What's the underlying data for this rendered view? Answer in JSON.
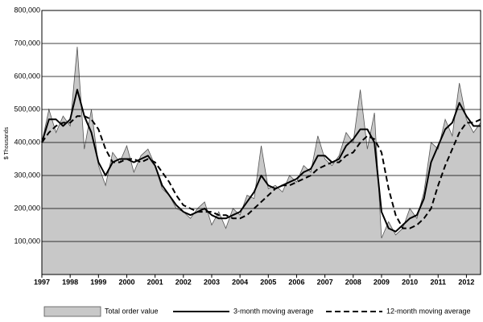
{
  "chart_data": {
    "type": "line",
    "y_label": "$ Thousands",
    "x": [
      1997,
      1997.25,
      1997.5,
      1997.75,
      1998,
      1998.25,
      1998.5,
      1998.75,
      1999,
      1999.25,
      1999.5,
      1999.75,
      2000,
      2000.25,
      2000.5,
      2000.75,
      2001,
      2001.25,
      2001.5,
      2001.75,
      2002,
      2002.25,
      2002.5,
      2002.75,
      2003,
      2003.25,
      2003.5,
      2003.75,
      2004,
      2004.25,
      2004.5,
      2004.75,
      2005,
      2005.25,
      2005.5,
      2005.75,
      2006,
      2006.25,
      2006.5,
      2006.75,
      2007,
      2007.25,
      2007.5,
      2007.75,
      2008,
      2008.25,
      2008.5,
      2008.75,
      2009,
      2009.25,
      2009.5,
      2009.75,
      2010,
      2010.25,
      2010.5,
      2010.75,
      2011,
      2011.25,
      2011.5,
      2011.75,
      2012,
      2012.25,
      2012.5
    ],
    "series": [
      {
        "name": "Total order value",
        "style": "area",
        "color": "#c8c8c8",
        "values": [
          400000,
          500000,
          430000,
          480000,
          450000,
          690000,
          380000,
          500000,
          330000,
          270000,
          370000,
          340000,
          390000,
          310000,
          360000,
          380000,
          330000,
          260000,
          240000,
          200000,
          190000,
          170000,
          200000,
          220000,
          150000,
          190000,
          140000,
          200000,
          180000,
          240000,
          230000,
          390000,
          260000,
          270000,
          250000,
          300000,
          280000,
          330000,
          310000,
          420000,
          350000,
          330000,
          360000,
          430000,
          400000,
          560000,
          380000,
          490000,
          110000,
          160000,
          120000,
          140000,
          200000,
          170000,
          250000,
          400000,
          380000,
          470000,
          420000,
          580000,
          470000,
          430000,
          460000
        ]
      },
      {
        "name": "3-month moving average",
        "style": "solid",
        "color": "#000000",
        "values": [
          400000,
          470000,
          470000,
          450000,
          470000,
          560000,
          480000,
          430000,
          340000,
          300000,
          340000,
          350000,
          350000,
          340000,
          350000,
          360000,
          330000,
          270000,
          240000,
          210000,
          190000,
          180000,
          190000,
          200000,
          180000,
          170000,
          170000,
          180000,
          190000,
          220000,
          250000,
          300000,
          270000,
          260000,
          270000,
          280000,
          290000,
          310000,
          320000,
          360000,
          360000,
          340000,
          350000,
          390000,
          410000,
          440000,
          440000,
          400000,
          190000,
          140000,
          130000,
          150000,
          170000,
          180000,
          230000,
          340000,
          390000,
          440000,
          460000,
          520000,
          480000,
          450000,
          450000
        ]
      },
      {
        "name": "12-month moving average",
        "style": "dashed",
        "color": "#000000",
        "values": [
          400000,
          430000,
          450000,
          460000,
          460000,
          480000,
          480000,
          470000,
          440000,
          380000,
          340000,
          340000,
          350000,
          350000,
          340000,
          350000,
          340000,
          310000,
          280000,
          240000,
          210000,
          200000,
          190000,
          190000,
          190000,
          180000,
          180000,
          170000,
          170000,
          180000,
          200000,
          220000,
          240000,
          260000,
          270000,
          270000,
          280000,
          290000,
          300000,
          320000,
          330000,
          340000,
          340000,
          360000,
          370000,
          400000,
          420000,
          410000,
          370000,
          260000,
          180000,
          140000,
          140000,
          150000,
          170000,
          200000,
          270000,
          330000,
          380000,
          430000,
          460000,
          460000,
          470000
        ]
      }
    ],
    "xlim": [
      1997,
      2012.5
    ],
    "xticks": [
      1997,
      1998,
      1999,
      2000,
      2001,
      2002,
      2003,
      2004,
      2005,
      2006,
      2007,
      2008,
      2009,
      2010,
      2011,
      2012
    ],
    "ylim": [
      0,
      800000
    ],
    "yticks": [
      {
        "value": 100000,
        "label": "100,000"
      },
      {
        "value": 200000,
        "label": "200,000"
      },
      {
        "value": 300000,
        "label": "300,000"
      },
      {
        "value": 400000,
        "label": "400,000"
      },
      {
        "value": 500000,
        "label": "500,000"
      },
      {
        "value": 600000,
        "label": "600,000"
      },
      {
        "value": 700000,
        "label": "700,000"
      },
      {
        "value": 800000,
        "label": "800,000"
      }
    ],
    "grid": true
  }
}
